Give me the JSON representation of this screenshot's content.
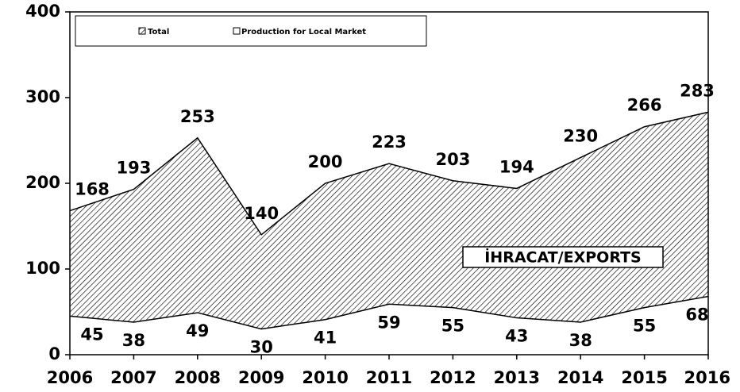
{
  "chart_data": {
    "type": "area",
    "categories": [
      "2006",
      "2007",
      "2008",
      "2009",
      "2010",
      "2011",
      "2012",
      "2013",
      "2014",
      "2015",
      "2016"
    ],
    "series": [
      {
        "name": "Total",
        "values": [
          168,
          193,
          253,
          140,
          200,
          223,
          203,
          194,
          230,
          266,
          283
        ]
      },
      {
        "name": "Production for Local Market",
        "values": [
          45,
          38,
          49,
          30,
          41,
          59,
          55,
          43,
          38,
          55,
          68
        ]
      }
    ],
    "ylim": [
      0,
      400
    ],
    "yticks": [
      0,
      100,
      200,
      300,
      400
    ],
    "annotation": "İHRACAT/EXPORTS",
    "legend": "top"
  }
}
